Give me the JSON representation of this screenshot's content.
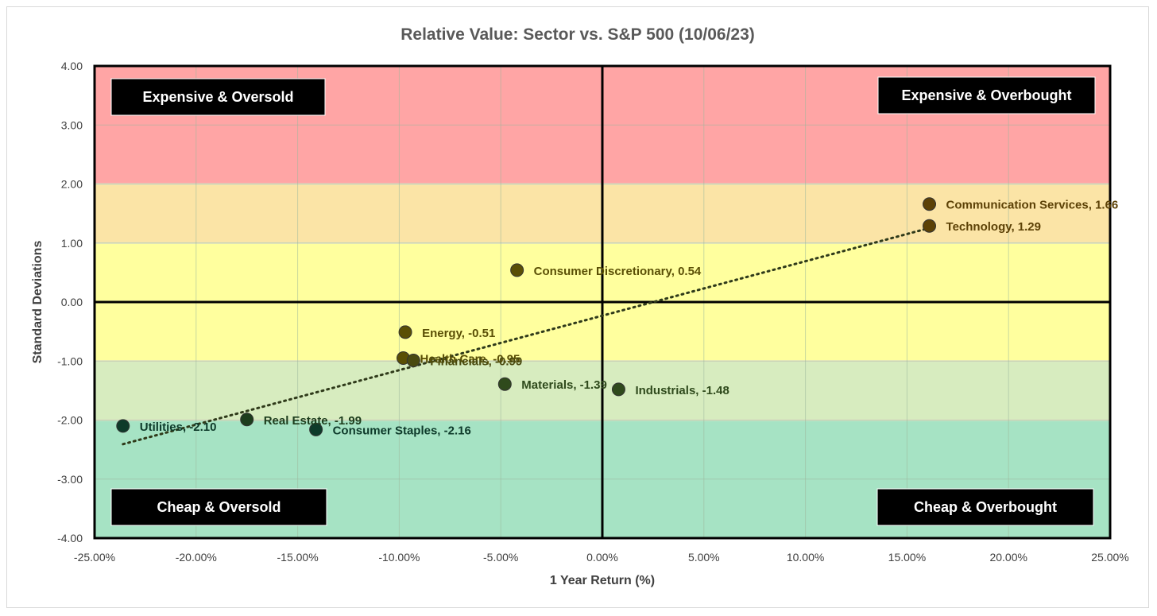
{
  "chart_data": {
    "type": "scatter",
    "title": "Relative Value: Sector vs. S&P 500 (10/06/23)",
    "xlabel": "1 Year Return (%)",
    "ylabel": "Standard Deviations",
    "xlim": [
      -25,
      25
    ],
    "ylim": [
      -4,
      4
    ],
    "x_ticks": [
      "-25.00%",
      "-20.00%",
      "-15.00%",
      "-10.00%",
      "-5.00%",
      "0.00%",
      "5.00%",
      "10.00%",
      "15.00%",
      "20.00%",
      "25.00%"
    ],
    "y_ticks": [
      "4.00",
      "3.00",
      "2.00",
      "1.00",
      "0.00",
      "-1.00",
      "-2.00",
      "-3.00",
      "-4.00"
    ],
    "grid": true,
    "trendline": "linear, dotted",
    "bands": [
      {
        "from": 2,
        "to": 4,
        "color": "#ffa5a5"
      },
      {
        "from": 1,
        "to": 2,
        "color": "#fbe4a6"
      },
      {
        "from": -1,
        "to": 1,
        "color": "#ffff9e"
      },
      {
        "from": -2,
        "to": -1,
        "color": "#d7ecbf"
      },
      {
        "from": -4,
        "to": -2,
        "color": "#a6e3c4"
      }
    ],
    "quadrant_labels": {
      "top_left": "Expensive & Oversold",
      "top_right": "Expensive & Overbought",
      "bottom_left": "Cheap & Oversold",
      "bottom_right": "Cheap & Overbought"
    },
    "points": [
      {
        "label": "Communication Services, 1.66",
        "x": 16.1,
        "y": 1.66,
        "color": "#5c4106"
      },
      {
        "label": "Technology, 1.29",
        "x": 16.1,
        "y": 1.29,
        "color": "#5c4106"
      },
      {
        "label": "Consumer Discretionary, 0.54",
        "x": -4.2,
        "y": 0.54,
        "color": "#5a4f05"
      },
      {
        "label": "Energy, -0.51",
        "x": -9.7,
        "y": -0.51,
        "color": "#5a4f05"
      },
      {
        "label": "Health Care, -0.95",
        "x": -9.8,
        "y": -0.95,
        "color": "#5a4f05"
      },
      {
        "label": "Financials, -0.99",
        "x": -9.3,
        "y": -0.99,
        "color": "#4a4a10"
      },
      {
        "label": "Materials, -1.39",
        "x": -4.8,
        "y": -1.39,
        "color": "#2f4a1c"
      },
      {
        "label": "Industrials, -1.48",
        "x": 0.8,
        "y": -1.48,
        "color": "#2f4a1c"
      },
      {
        "label": "Real Estate, -1.99",
        "x": -17.5,
        "y": -1.99,
        "color": "#1d3d1d"
      },
      {
        "label": "Utilities, -2.10",
        "x": -23.6,
        "y": -2.1,
        "color": "#0d3a2a"
      },
      {
        "label": "Consumer Staples, -2.16",
        "x": -14.1,
        "y": -2.16,
        "color": "#0d3a2a"
      }
    ]
  }
}
